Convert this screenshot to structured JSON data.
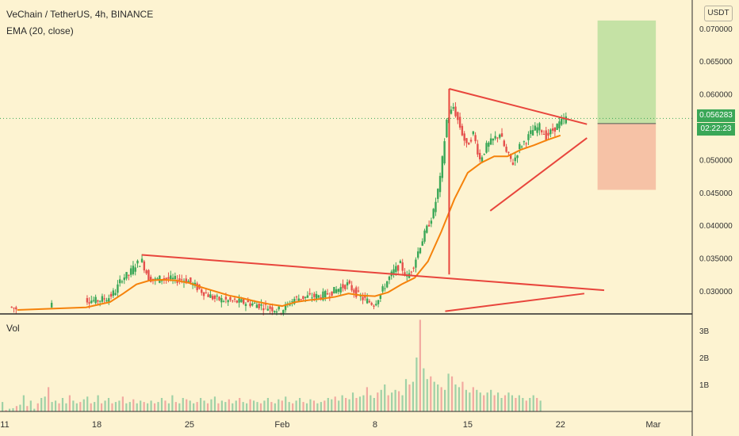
{
  "header": {
    "title": "VeChain / TetherUS, 4h, BINANCE",
    "indicator": "EMA (20, close)",
    "volume_label": "Vol",
    "currency": "USDT"
  },
  "last_price": "0.056283",
  "countdown": "02:22:23",
  "colors": {
    "up": "#3aa757",
    "down": "#e5504c",
    "ema": "#f5820b",
    "trendline": "#e8453c",
    "target_zone": "#c5e2a5",
    "stop_zone": "#f6c2a6",
    "background": "#fdf3d1"
  },
  "chart_data": {
    "type": "candlestick",
    "symbol": "VeChain / TetherUS",
    "timeframe": "4h",
    "exchange": "BINANCE",
    "price_axis": {
      "ticks": [
        "0.070000",
        "0.065000",
        "0.060000",
        "0.055000",
        "0.050000",
        "0.045000",
        "0.040000",
        "0.035000",
        "0.030000"
      ],
      "ylim": [
        0.0268,
        0.0712
      ]
    },
    "time_axis": {
      "ticks": [
        "11",
        "18",
        "25",
        "Feb",
        "8",
        "15",
        "22",
        "Mar"
      ]
    },
    "volume_axis": {
      "ticks": [
        "3B",
        "2B",
        "1B"
      ]
    },
    "price_series": [
      {
        "x": 0.5,
        "c": 0.0276
      },
      {
        "x": 1,
        "c": 0.0273
      },
      {
        "x": 6.2,
        "c": 0.0287
      },
      {
        "x": 7,
        "c": 0.0285
      },
      {
        "x": 8,
        "c": 0.029
      },
      {
        "x": 8.5,
        "c": 0.03
      },
      {
        "x": 9,
        "c": 0.032
      },
      {
        "x": 9.5,
        "c": 0.0325
      },
      {
        "x": 10,
        "c": 0.034
      },
      {
        "x": 10.5,
        "c": 0.0345
      },
      {
        "x": 11,
        "c": 0.032
      },
      {
        "x": 11.5,
        "c": 0.0316
      },
      {
        "x": 12,
        "c": 0.032
      },
      {
        "x": 13,
        "c": 0.0317
      },
      {
        "x": 13.5,
        "c": 0.0318
      },
      {
        "x": 14,
        "c": 0.0315
      },
      {
        "x": 15,
        "c": 0.03
      },
      {
        "x": 16,
        "c": 0.0288
      },
      {
        "x": 17,
        "c": 0.0285
      },
      {
        "x": 18,
        "c": 0.0283
      },
      {
        "x": 19,
        "c": 0.028
      },
      {
        "x": 20,
        "c": 0.0275
      },
      {
        "x": 21,
        "c": 0.027
      },
      {
        "x": 22,
        "c": 0.0288
      },
      {
        "x": 23,
        "c": 0.0291
      },
      {
        "x": 24,
        "c": 0.0292
      },
      {
        "x": 25,
        "c": 0.03
      },
      {
        "x": 26,
        "c": 0.031
      },
      {
        "x": 26.5,
        "c": 0.03
      },
      {
        "x": 27,
        "c": 0.029
      },
      {
        "x": 28,
        "c": 0.028
      },
      {
        "x": 28.5,
        "c": 0.0295
      },
      {
        "x": 29,
        "c": 0.0315
      },
      {
        "x": 29.5,
        "c": 0.033
      },
      {
        "x": 30,
        "c": 0.034
      },
      {
        "x": 30.5,
        "c": 0.032
      },
      {
        "x": 31,
        "c": 0.034
      },
      {
        "x": 31.5,
        "c": 0.037
      },
      {
        "x": 32,
        "c": 0.0395
      },
      {
        "x": 32.5,
        "c": 0.042
      },
      {
        "x": 33,
        "c": 0.047
      },
      {
        "x": 33.5,
        "c": 0.056
      },
      {
        "x": 34,
        "c": 0.058
      },
      {
        "x": 34.5,
        "c": 0.055
      },
      {
        "x": 35,
        "c": 0.052
      },
      {
        "x": 35.5,
        "c": 0.054
      },
      {
        "x": 36,
        "c": 0.05
      },
      {
        "x": 36.5,
        "c": 0.052
      },
      {
        "x": 37,
        "c": 0.053
      },
      {
        "x": 37.5,
        "c": 0.054
      },
      {
        "x": 38,
        "c": 0.051
      },
      {
        "x": 38.5,
        "c": 0.0495
      },
      {
        "x": 39,
        "c": 0.052
      },
      {
        "x": 39.5,
        "c": 0.053
      },
      {
        "x": 40,
        "c": 0.0545
      },
      {
        "x": 40.5,
        "c": 0.055
      },
      {
        "x": 41,
        "c": 0.0535
      },
      {
        "x": 41.5,
        "c": 0.0545
      },
      {
        "x": 42,
        "c": 0.0555
      },
      {
        "x": 42.5,
        "c": 0.0563
      }
    ],
    "ema_period": 20,
    "ema_series": [
      {
        "x": 1,
        "y": 0.0271
      },
      {
        "x": 6.2,
        "y": 0.0275
      },
      {
        "x": 8,
        "y": 0.0283
      },
      {
        "x": 9,
        "y": 0.0296
      },
      {
        "x": 10,
        "y": 0.031
      },
      {
        "x": 11,
        "y": 0.0316
      },
      {
        "x": 12,
        "y": 0.0317
      },
      {
        "x": 13,
        "y": 0.0316
      },
      {
        "x": 14,
        "y": 0.0312
      },
      {
        "x": 15,
        "y": 0.0305
      },
      {
        "x": 16,
        "y": 0.0299
      },
      {
        "x": 17,
        "y": 0.0293
      },
      {
        "x": 18,
        "y": 0.0289
      },
      {
        "x": 19,
        "y": 0.0284
      },
      {
        "x": 20,
        "y": 0.028
      },
      {
        "x": 21,
        "y": 0.0277
      },
      {
        "x": 22,
        "y": 0.0283
      },
      {
        "x": 23,
        "y": 0.0286
      },
      {
        "x": 24,
        "y": 0.0288
      },
      {
        "x": 25,
        "y": 0.0291
      },
      {
        "x": 26,
        "y": 0.0296
      },
      {
        "x": 27,
        "y": 0.0293
      },
      {
        "x": 28,
        "y": 0.0292
      },
      {
        "x": 29,
        "y": 0.0298
      },
      {
        "x": 30,
        "y": 0.031
      },
      {
        "x": 31,
        "y": 0.032
      },
      {
        "x": 32,
        "y": 0.0345
      },
      {
        "x": 33,
        "y": 0.039
      },
      {
        "x": 34,
        "y": 0.044
      },
      {
        "x": 35,
        "y": 0.048
      },
      {
        "x": 36,
        "y": 0.0495
      },
      {
        "x": 37,
        "y": 0.0505
      },
      {
        "x": 38,
        "y": 0.0505
      },
      {
        "x": 39,
        "y": 0.0515
      },
      {
        "x": 40,
        "y": 0.0522
      },
      {
        "x": 41,
        "y": 0.053
      },
      {
        "x": 42,
        "y": 0.0537
      }
    ],
    "trendlines": [
      {
        "name": "big-triangle-upper",
        "points": [
          [
            10.4,
            0.0355
          ],
          [
            45.3,
            0.0301
          ]
        ]
      },
      {
        "name": "big-triangle-lower",
        "points": [
          [
            33.3,
            0.0269
          ],
          [
            43.8,
            0.0296
          ]
        ]
      },
      {
        "name": "pole",
        "points": [
          [
            33.6,
            0.0325
          ],
          [
            33.6,
            0.0608
          ]
        ]
      },
      {
        "name": "pennant-upper",
        "points": [
          [
            33.6,
            0.0608
          ],
          [
            44.0,
            0.0554
          ]
        ]
      },
      {
        "name": "pennant-lower",
        "points": [
          [
            36.7,
            0.0422
          ],
          [
            44.0,
            0.0533
          ]
        ]
      }
    ],
    "trade_zones": [
      {
        "name": "target",
        "x_range": [
          44.8,
          49.2
        ],
        "price_range": [
          0.0555,
          0.0712
        ]
      },
      {
        "name": "stop",
        "x_range": [
          44.8,
          49.2
        ],
        "price_range": [
          0.0454,
          0.0555
        ]
      }
    ],
    "volume_bars": [
      0.35,
      0.05,
      0.1,
      0.12,
      0.2,
      0.25,
      0.6,
      0.2,
      0.4,
      0.1,
      0.3,
      0.5,
      0.55,
      0.9,
      0.35,
      0.4,
      0.3,
      0.5,
      0.3,
      0.6,
      0.4,
      0.3,
      0.35,
      0.45,
      0.55,
      0.3,
      0.35,
      0.6,
      0.3,
      0.4,
      0.5,
      0.3,
      0.35,
      0.4,
      0.55,
      0.3,
      0.35,
      0.45,
      0.3,
      0.4,
      0.35,
      0.3,
      0.4,
      0.3,
      0.35,
      0.5,
      0.4,
      0.3,
      0.6,
      0.35,
      0.3,
      0.5,
      0.45,
      0.4,
      0.3,
      0.35,
      0.5,
      0.4,
      0.3,
      0.45,
      0.55,
      0.3,
      0.4,
      0.35,
      0.45,
      0.3,
      0.4,
      0.5,
      0.35,
      0.3,
      0.45,
      0.4,
      0.35,
      0.3,
      0.4,
      0.5,
      0.35,
      0.3,
      0.45,
      0.4,
      0.55,
      0.35,
      0.3,
      0.4,
      0.5,
      0.35,
      0.3,
      0.45,
      0.4,
      0.3,
      0.35,
      0.4,
      0.5,
      0.45,
      0.55,
      0.4,
      0.6,
      0.5,
      0.45,
      0.7,
      0.5,
      0.55,
      0.6,
      0.9,
      0.6,
      0.5,
      0.7,
      0.8,
      1.0,
      0.6,
      0.7,
      0.8,
      0.75,
      0.6,
      1.2,
      1.0,
      1.1,
      2.0,
      3.4,
      1.6,
      1.2,
      1.3,
      1.1,
      1.0,
      0.9,
      0.8,
      1.4,
      1.3,
      1.0,
      0.9,
      1.1,
      0.8,
      0.7,
      0.9,
      0.8,
      0.7,
      0.6,
      0.7,
      0.8,
      0.6,
      0.7,
      0.5,
      0.6,
      0.7,
      0.6,
      0.5,
      0.6,
      0.5,
      0.4,
      0.5,
      0.6,
      0.5,
      0.4
    ]
  }
}
